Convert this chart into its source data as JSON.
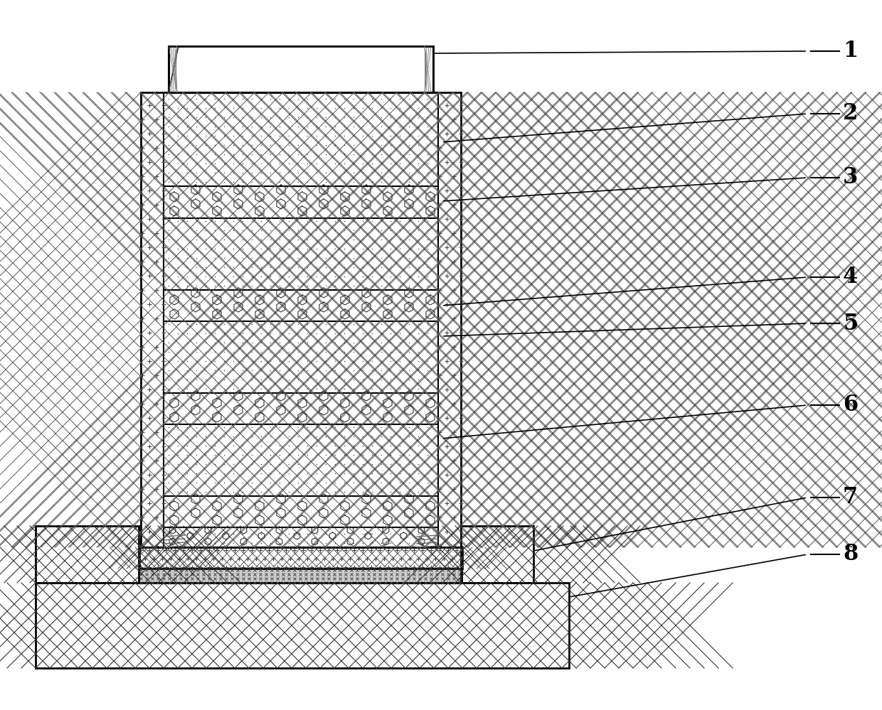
{
  "bg_color": "#ffffff",
  "line_color": "#000000",
  "label_fontsize": 22,
  "label_font_weight": "bold",
  "labels": [
    "1",
    "2",
    "3",
    "4",
    "5",
    "6",
    "7",
    "8"
  ],
  "fig_width": 12.4,
  "fig_height": 9.99
}
